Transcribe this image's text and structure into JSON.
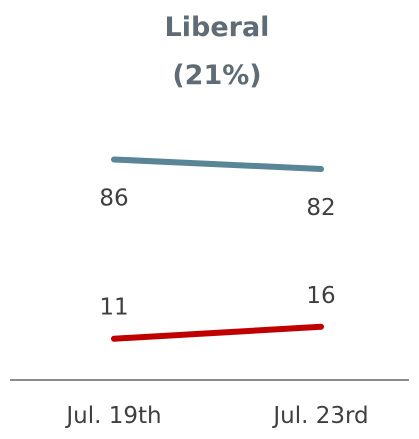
{
  "chart_data": {
    "type": "line",
    "title": "Liberal",
    "subtitle": "(21%)",
    "categories": [
      "Jul. 19th",
      "Jul. 23rd"
    ],
    "series": [
      {
        "values": [
          86,
          82
        ],
        "color": "#5a8597"
      },
      {
        "values": [
          11,
          16
        ],
        "color": "#c00000"
      }
    ],
    "ylim": [
      0,
      100
    ],
    "grid": false,
    "legend": "none",
    "axis_color": "#8c8c8c"
  }
}
